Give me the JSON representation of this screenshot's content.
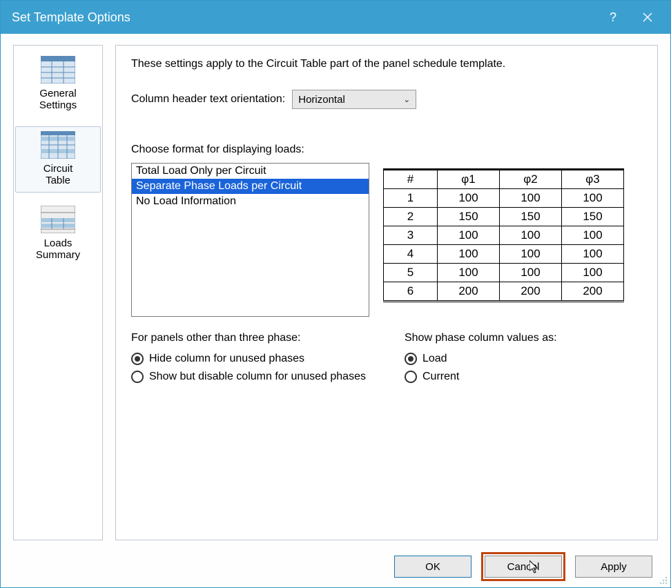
{
  "title": "Set Template Options",
  "colors": {
    "titlebar_bg": "#3ba0d0",
    "selection_bg": "#1a63d9",
    "highlight_border": "#c1440e"
  },
  "sidebar": {
    "items": [
      {
        "label": "General Settings",
        "selected": false
      },
      {
        "label": "Circuit Table",
        "selected": true
      },
      {
        "label": "Loads Summary",
        "selected": false
      }
    ]
  },
  "main": {
    "intro": "These settings apply to the Circuit Table part of the panel schedule template.",
    "orientation": {
      "label": "Column header text orientation:",
      "value": "Horizontal"
    },
    "format": {
      "label": "Choose format for displaying loads:",
      "options": [
        "Total Load Only per Circuit",
        "Separate Phase Loads per Circuit",
        "No Load Information"
      ],
      "selected_index": 1
    },
    "preview": {
      "columns": [
        "#",
        "φ1",
        "φ2",
        "φ3"
      ],
      "rows": [
        [
          "1",
          "100",
          "100",
          "100"
        ],
        [
          "2",
          "150",
          "150",
          "150"
        ],
        [
          "3",
          "100",
          "100",
          "100"
        ],
        [
          "4",
          "100",
          "100",
          "100"
        ],
        [
          "5",
          "100",
          "100",
          "100"
        ],
        [
          "6",
          "200",
          "200",
          "200"
        ]
      ]
    },
    "panel_options": {
      "title": "For panels other than three phase:",
      "options": [
        "Hide column for unused phases",
        "Show but disable column for unused phases"
      ],
      "selected_index": 0
    },
    "value_options": {
      "title": "Show phase column values as:",
      "options": [
        "Load",
        "Current"
      ],
      "selected_index": 0
    }
  },
  "buttons": {
    "ok": "OK",
    "cancel": "Cancel",
    "apply": "Apply"
  }
}
